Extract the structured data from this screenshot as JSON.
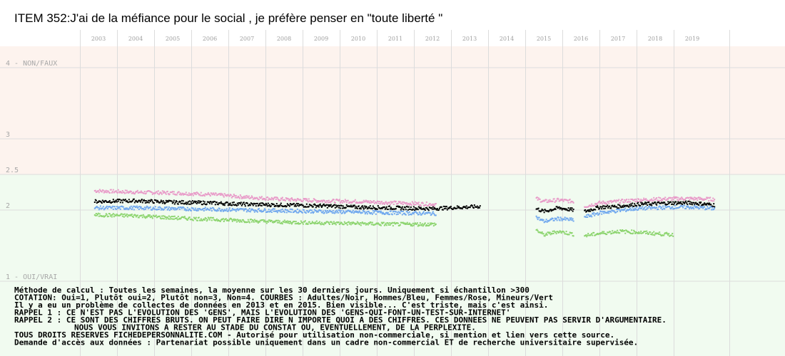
{
  "chart_data": {
    "type": "scatter",
    "title": "ITEM 352:J'ai de la méfiance pour le social , je préfère penser en \"toute liberté \"",
    "years": [
      "2003",
      "2004",
      "2005",
      "2006",
      "2007",
      "2008",
      "2009",
      "2010",
      "2011",
      "2012",
      "2013",
      "2014",
      "2015",
      "2016",
      "2017",
      "2018",
      "2019"
    ],
    "x_range": [
      2002.5,
      2020.5
    ],
    "y_range": [
      1,
      4.3
    ],
    "y_ticks": [
      {
        "value": 4,
        "label": "4 - NON/FAUX"
      },
      {
        "value": 3,
        "label": "3"
      },
      {
        "value": 2.5,
        "label": "2.5"
      },
      {
        "value": 2,
        "label": "2"
      },
      {
        "value": 1,
        "label": "1 - OUI/VRAI"
      }
    ],
    "bands": [
      {
        "from": 2.5,
        "to": 4.3,
        "color": "#fdf3ee"
      },
      {
        "from": 1.0,
        "to": 2.5,
        "color": "#f1fbf0"
      }
    ],
    "series": [
      {
        "color": "#e89ac8",
        "segments": [
          {
            "x": [
              2002.9,
              2004.0,
              2005.0,
              2006.0,
              2007.0,
              2008.0,
              2009.0,
              2010.0,
              2011.0,
              2012.1
            ],
            "y": [
              2.27,
              2.25,
              2.24,
              2.22,
              2.18,
              2.15,
              2.13,
              2.12,
              2.1,
              2.08
            ]
          },
          {
            "x": [
              2014.8,
              2015.0,
              2015.4,
              2015.8
            ],
            "y": [
              2.16,
              2.12,
              2.14,
              2.12
            ]
          },
          {
            "x": [
              2016.1,
              2016.5,
              2017.0,
              2017.5,
              2018.0,
              2018.5,
              2019.0,
              2019.6
            ],
            "y": [
              2.05,
              2.1,
              2.12,
              2.14,
              2.15,
              2.16,
              2.16,
              2.15
            ]
          }
        ]
      },
      {
        "color": "#000000",
        "segments": [
          {
            "x": [
              2002.9,
              2004.0,
              2005.0,
              2006.0,
              2007.0,
              2008.0,
              2009.0,
              2010.0,
              2011.0,
              2012.0,
              2013.3
            ],
            "y": [
              2.12,
              2.13,
              2.11,
              2.1,
              2.08,
              2.07,
              2.06,
              2.04,
              2.03,
              2.02,
              2.05
            ]
          },
          {
            "x": [
              2014.8,
              2015.0,
              2015.4,
              2015.8
            ],
            "y": [
              2.02,
              1.98,
              2.03,
              2.0
            ]
          },
          {
            "x": [
              2016.1,
              2016.5,
              2017.0,
              2017.5,
              2018.0,
              2018.5,
              2019.0,
              2019.6
            ],
            "y": [
              1.98,
              2.04,
              2.05,
              2.08,
              2.09,
              2.1,
              2.1,
              2.07
            ]
          }
        ]
      },
      {
        "color": "#6fa7ee",
        "segments": [
          {
            "x": [
              2002.9,
              2004.0,
              2005.0,
              2006.0,
              2007.0,
              2008.0,
              2009.0,
              2010.0,
              2011.0,
              2012.1
            ],
            "y": [
              2.03,
              2.03,
              2.02,
              2.01,
              2.0,
              1.99,
              1.98,
              1.97,
              1.96,
              1.95
            ]
          },
          {
            "x": [
              2014.8,
              2015.0,
              2015.4,
              2015.8
            ],
            "y": [
              1.9,
              1.84,
              1.88,
              1.86
            ]
          },
          {
            "x": [
              2016.1,
              2016.5,
              2017.0,
              2017.5,
              2018.0,
              2018.5,
              2019.0,
              2019.6
            ],
            "y": [
              1.9,
              1.96,
              1.99,
              2.02,
              2.03,
              2.04,
              2.04,
              2.02
            ]
          }
        ]
      },
      {
        "color": "#8cd46e",
        "segments": [
          {
            "x": [
              2002.9,
              2004.0,
              2005.0,
              2006.0,
              2007.0,
              2008.0,
              2009.0,
              2010.0,
              2011.0,
              2012.1
            ],
            "y": [
              1.93,
              1.92,
              1.89,
              1.87,
              1.85,
              1.83,
              1.82,
              1.81,
              1.8,
              1.8
            ]
          },
          {
            "x": [
              2014.8,
              2015.0,
              2015.4,
              2015.8
            ],
            "y": [
              1.72,
              1.65,
              1.7,
              1.66
            ]
          },
          {
            "x": [
              2016.1,
              2016.5,
              2017.0,
              2017.5,
              2018.0,
              2018.5
            ],
            "y": [
              1.64,
              1.67,
              1.7,
              1.69,
              1.67,
              1.65
            ]
          }
        ]
      }
    ],
    "notes": [
      "Méthode de calcul : Toutes les semaines, la moyenne sur les 30 derniers jours. Uniquement si échantillon >300",
      "COTATION: Oui=1, Plutôt oui=2, Plutôt non=3, Non=4. COURBES : Adultes/Noir, Hommes/Bleu, Femmes/Rose, Mineurs/Vert",
      "Il y a eu un problème de collectes de données en 2013 et en 2015. Bien visible... C'est triste, mais c'est ainsi.",
      "RAPPEL 1 : CE N'EST PAS L'EVOLUTION DES 'GENS', MAIS L'EVOLUTION DES 'GENS-QUI-FONT-UN-TEST-SUR-INTERNET'",
      "RAPPEL 2 : CE SONT DES CHIFFRES BRUTS. ON PEUT FAIRE DIRE N IMPORTE QUOI A DES CHIFFRES. CES DONNEES NE PEUVENT PAS SERVIR D'ARGUMENTAIRE.",
      "NOUS VOUS INVITONS A RESTER AU STADE DU CONSTAT OU, EVENTUELLEMENT, DE LA PERPLEXITE.",
      "TOUS DROITS RESERVES FICHEDEPERSONNALITE.COM - Autorisé pour utilisation non-commerciale, si mention et lien vers cette source.",
      "Demande d'accès aux données : Partenariat possible uniquement dans un cadre non-commercial ET de recherche universitaire supervisée."
    ]
  }
}
